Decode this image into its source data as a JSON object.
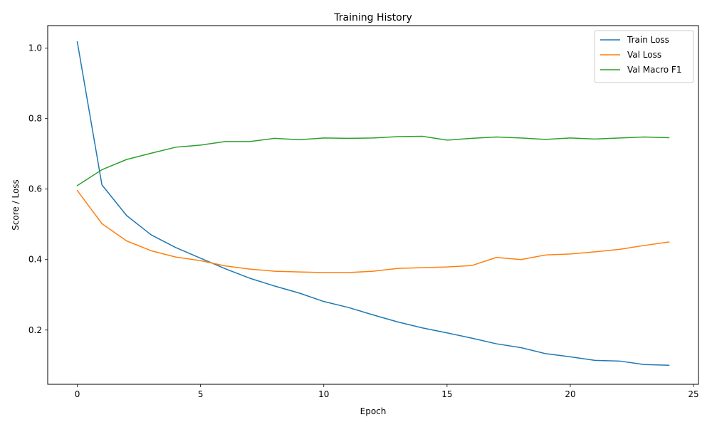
{
  "chart_data": {
    "type": "line",
    "title": "Training History",
    "xlabel": "Epoch",
    "ylabel": "Score / Loss",
    "xlim": [
      -1.2,
      25.2
    ],
    "ylim": [
      0.046,
      1.064
    ],
    "xticks": [
      0,
      5,
      10,
      15,
      20,
      25
    ],
    "yticks": [
      0.2,
      0.4,
      0.6,
      0.8,
      1.0
    ],
    "xtick_labels": [
      "0",
      "5",
      "10",
      "15",
      "20",
      "25"
    ],
    "ytick_labels": [
      "0.2",
      "0.4",
      "0.6",
      "0.8",
      "1.0"
    ],
    "grid": false,
    "legend_position": "top-right",
    "x": [
      0,
      1,
      2,
      3,
      4,
      5,
      6,
      7,
      8,
      9,
      10,
      11,
      12,
      13,
      14,
      15,
      16,
      17,
      18,
      19,
      20,
      21,
      22,
      23,
      24
    ],
    "series": [
      {
        "name": "Train Loss",
        "color": "#1f77b4",
        "values": [
          1.018,
          0.612,
          0.525,
          0.47,
          0.434,
          0.404,
          0.374,
          0.347,
          0.325,
          0.305,
          0.281,
          0.264,
          0.243,
          0.223,
          0.206,
          0.192,
          0.177,
          0.161,
          0.15,
          0.133,
          0.124,
          0.114,
          0.112,
          0.102,
          0.1
        ]
      },
      {
        "name": "Val Loss",
        "color": "#ff7f0e",
        "values": [
          0.596,
          0.502,
          0.453,
          0.425,
          0.407,
          0.397,
          0.382,
          0.373,
          0.367,
          0.365,
          0.363,
          0.363,
          0.367,
          0.375,
          0.377,
          0.379,
          0.383,
          0.406,
          0.4,
          0.413,
          0.416,
          0.422,
          0.429,
          0.44,
          0.45
        ]
      },
      {
        "name": "Val Macro F1",
        "color": "#2ca02c",
        "values": [
          0.61,
          0.655,
          0.684,
          0.702,
          0.719,
          0.725,
          0.735,
          0.735,
          0.744,
          0.74,
          0.745,
          0.744,
          0.745,
          0.749,
          0.75,
          0.739,
          0.744,
          0.748,
          0.745,
          0.741,
          0.745,
          0.742,
          0.745,
          0.748,
          0.746
        ]
      }
    ]
  }
}
